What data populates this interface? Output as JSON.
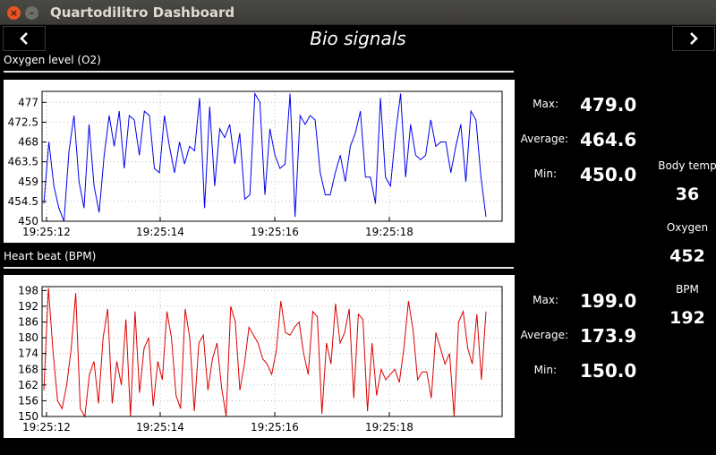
{
  "window": {
    "title": "Quartodilitro Dashboard"
  },
  "header": {
    "title": "Bio signals",
    "prev_icon": "chevron-left-icon",
    "next_icon": "chevron-right-icon"
  },
  "oxygen": {
    "section_title": "Oxygen level (O2)",
    "stats": {
      "max_label": "Max:",
      "max": "479.0",
      "avg_label": "Average:",
      "avg": "464.6",
      "min_label": "Min:",
      "min": "450.0"
    }
  },
  "heart": {
    "section_title": "Heart beat (BPM)",
    "stats": {
      "max_label": "Max:",
      "max": "199.0",
      "avg_label": "Average:",
      "avg": "173.9",
      "min_label": "Min:",
      "min": "150.0"
    }
  },
  "side": {
    "temp_label": "Body temp",
    "temp": "36",
    "oxygen_label": "Oxygen",
    "oxygen": "452",
    "bpm_label": "BPM",
    "bpm": "192"
  },
  "chart_data": [
    {
      "type": "line",
      "series": [
        {
          "color": "#0000ee",
          "values": [
            454,
            468,
            458,
            453,
            450,
            466,
            474,
            459,
            453,
            472,
            458,
            452,
            465,
            474,
            467,
            475,
            462,
            474,
            473,
            465,
            475,
            474,
            462,
            461,
            474,
            467,
            461,
            468,
            463,
            467,
            466,
            478,
            453,
            476,
            458,
            471,
            469,
            472,
            463,
            470,
            455,
            456,
            479,
            477,
            456,
            471,
            465,
            462,
            463,
            479,
            451,
            474,
            472,
            474,
            473,
            461,
            456,
            456,
            461,
            465,
            459,
            467,
            470,
            475,
            460,
            460,
            454,
            478,
            460,
            458,
            470,
            479,
            460,
            472,
            465,
            464,
            465,
            473,
            467,
            468,
            468,
            461,
            467,
            472,
            459,
            475,
            473,
            460,
            451
          ]
        }
      ],
      "xtick_labels": [
        "19:25:12",
        "19:25:14",
        "19:25:16",
        "19:25:18"
      ],
      "ytick_labels": [
        "450",
        "454.5",
        "459",
        "463.5",
        "468",
        "472.5",
        "477"
      ],
      "ylim": [
        450,
        479.5
      ],
      "grid": true
    },
    {
      "type": "line",
      "series": [
        {
          "color": "#dd0000",
          "values": [
            160,
            199,
            175,
            156,
            153,
            162,
            176,
            197,
            153,
            150,
            166,
            171,
            155,
            180,
            191,
            155,
            171,
            162,
            187,
            150,
            190,
            159,
            176,
            180,
            154,
            171,
            164,
            190,
            180,
            158,
            153,
            191,
            180,
            152,
            178,
            181,
            160,
            172,
            178,
            161,
            150,
            192,
            186,
            160,
            170,
            184,
            181,
            178,
            172,
            170,
            166,
            175,
            194,
            182,
            181,
            184,
            186,
            174,
            166,
            190,
            188,
            151,
            178,
            170,
            193,
            178,
            182,
            191,
            157,
            189,
            187,
            152,
            178,
            158,
            168,
            164,
            166,
            168,
            163,
            176,
            194,
            183,
            164,
            167,
            167,
            157,
            182,
            176,
            170,
            174,
            150,
            186,
            190,
            176,
            170,
            189,
            164,
            190
          ]
        }
      ],
      "xtick_labels": [
        "19:25:12",
        "19:25:14",
        "19:25:16",
        "19:25:18"
      ],
      "ytick_labels": [
        "150",
        "156",
        "162",
        "168",
        "174",
        "180",
        "186",
        "192",
        "198"
      ],
      "ylim": [
        150,
        199.5
      ],
      "grid": true
    }
  ]
}
